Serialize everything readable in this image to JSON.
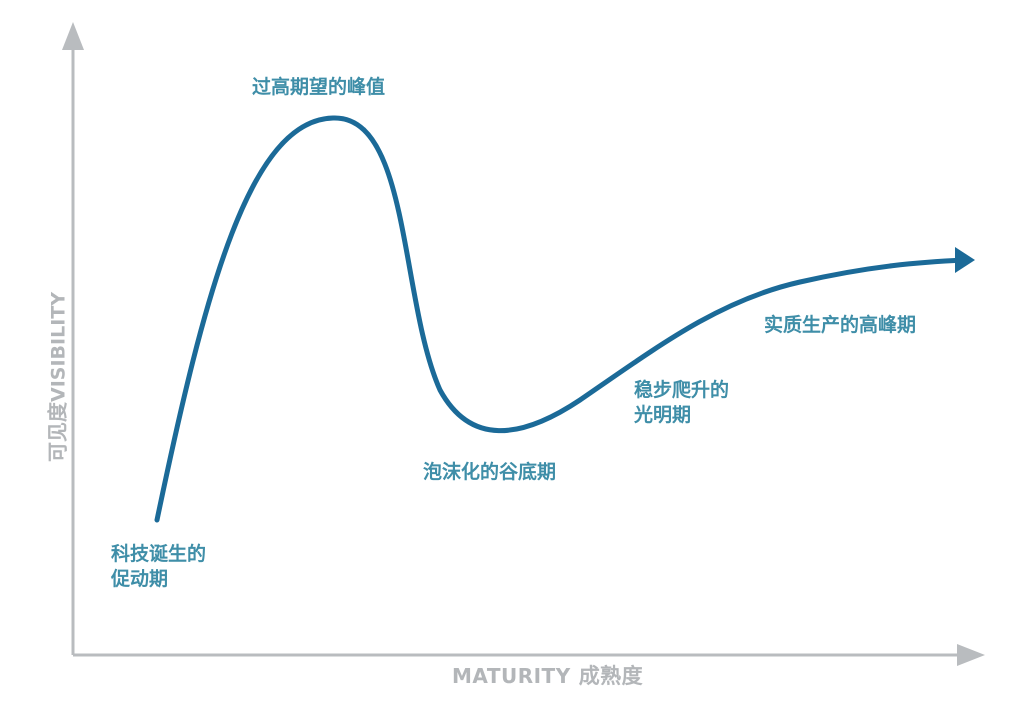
{
  "axes": {
    "x_label": "MATURITY",
    "x_label_cn": "成熟度",
    "y_label": "VISIBILITY",
    "y_label_cn": "可见度"
  },
  "phases": [
    {
      "lines": [
        "科技诞生的",
        "促动期"
      ]
    },
    {
      "lines": [
        "过高期望的峰值"
      ]
    },
    {
      "lines": [
        "泡沫化的谷底期"
      ]
    },
    {
      "lines": [
        "稳步爬升的",
        "光明期"
      ]
    },
    {
      "lines": [
        "实质生产的高峰期"
      ]
    }
  ],
  "colors": {
    "curve": "#1b6a98",
    "label": "#3f8ea8",
    "axis": "#b9bcbf"
  }
}
